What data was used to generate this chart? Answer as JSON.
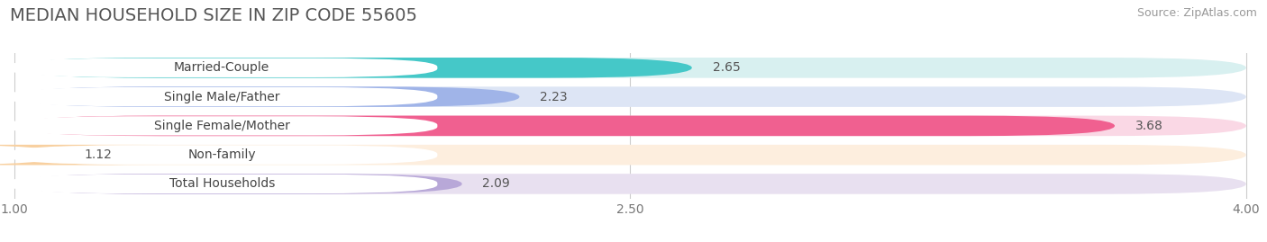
{
  "title": "MEDIAN HOUSEHOLD SIZE IN ZIP CODE 55605",
  "source": "Source: ZipAtlas.com",
  "categories": [
    "Married-Couple",
    "Single Male/Father",
    "Single Female/Mother",
    "Non-family",
    "Total Households"
  ],
  "values": [
    2.65,
    2.23,
    3.68,
    1.12,
    2.09
  ],
  "bar_colors": [
    "#45c8c8",
    "#a0b4e8",
    "#f06090",
    "#f8d0a0",
    "#b8a8d8"
  ],
  "bar_bg_colors": [
    "#d8f0f0",
    "#dde5f5",
    "#fad8e5",
    "#fdeede",
    "#e8e0f0"
  ],
  "xmin": 1.0,
  "xmax": 4.0,
  "xticks": [
    1.0,
    2.5,
    4.0
  ],
  "background_color": "#ffffff",
  "title_fontsize": 14,
  "source_fontsize": 9,
  "label_fontsize": 10,
  "value_fontsize": 10,
  "tick_fontsize": 10
}
